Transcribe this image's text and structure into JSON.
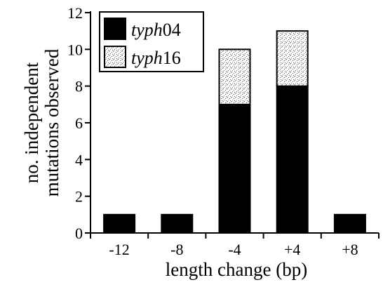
{
  "chart_data": {
    "type": "bar",
    "stacked": true,
    "title": "",
    "xlabel": "length change (bp)",
    "ylabel_lines": [
      "no. independent",
      "mutations observed"
    ],
    "categories": [
      "-12",
      "-8",
      "-4",
      "+4",
      "+8"
    ],
    "ylim": [
      0,
      12
    ],
    "yticks": [
      0,
      2,
      4,
      6,
      8,
      10,
      12
    ],
    "grid": false,
    "legend_position": "top-left",
    "series": [
      {
        "name": "typh04",
        "name_italic": "typh",
        "name_plain": "04",
        "values": [
          1,
          1,
          7,
          8,
          1
        ],
        "fill": "#000000"
      },
      {
        "name": "typh16",
        "name_italic": "typh",
        "name_plain": "16",
        "values": [
          0,
          0,
          3,
          3,
          0
        ],
        "fill": "stipple"
      }
    ]
  }
}
